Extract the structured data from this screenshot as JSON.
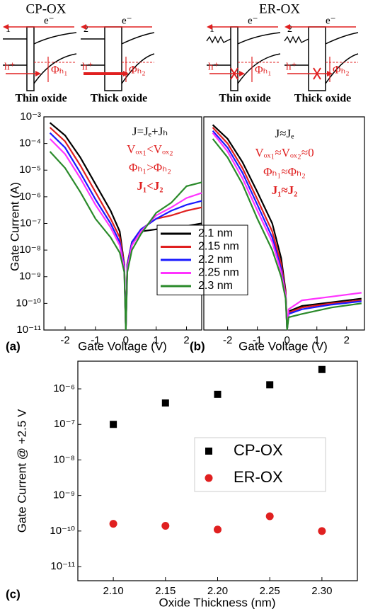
{
  "diagrams": {
    "cp_title": "CP-OX",
    "er_title": "ER-OX",
    "panels": [
      {
        "number": "1",
        "electron": "e⁻",
        "hole": "h⁺",
        "barrier": "Φₕ₁",
        "caption": "Thin oxide"
      },
      {
        "number": "2",
        "electron": "e⁻",
        "hole": "h⁺",
        "barrier": "Φₕ₂",
        "caption": "Thick oxide"
      },
      {
        "number": "1",
        "electron": "e⁻",
        "hole": "h⁺",
        "barrier": "Φₕ₁",
        "caption": "Thin oxide"
      },
      {
        "number": "2",
        "electron": "e⁻",
        "hole": "h⁺",
        "barrier": "Φₕ₂",
        "caption": "Thick oxide"
      }
    ]
  },
  "chart_data": [
    {
      "type": "line",
      "panel_label": "(a)",
      "y_label": "Gate Current (A)",
      "x_label": "Gate Voltage (V)",
      "yscale": "log",
      "xlim": [
        -2.7,
        2.5
      ],
      "ylim": [
        1e-11,
        0.001
      ],
      "xticks": [
        -2,
        -1,
        0,
        1,
        2
      ],
      "yticks": [
        {
          "value": 1e-11,
          "label": "10⁻¹¹"
        },
        {
          "value": 1e-10,
          "label": "10⁻¹⁰"
        },
        {
          "value": 1e-09,
          "label": "10⁻⁹"
        },
        {
          "value": 1e-08,
          "label": "10⁻⁸"
        },
        {
          "value": 1e-07,
          "label": "10⁻⁷"
        },
        {
          "value": 1e-06,
          "label": "10⁻⁶"
        },
        {
          "value": 1e-05,
          "label": "10⁻⁵"
        },
        {
          "value": 0.0001,
          "label": "10⁻⁴"
        },
        {
          "value": 0.001,
          "label": "10⁻³"
        }
      ],
      "annotations": [
        {
          "text": "J=Jₑ+Jₕ",
          "color": "#000000",
          "bold": false
        },
        {
          "text": "Vₒₓ₁<Vₒₓ₂",
          "color": "#e02020",
          "bold": false
        },
        {
          "text": "Φₕ₁>Φₕ₂",
          "color": "#e02020",
          "bold": false
        },
        {
          "text": "J₁<J₂",
          "color": "#e02020",
          "bold": true
        }
      ],
      "x": [
        -2.5,
        -2,
        -1.5,
        -1,
        -0.5,
        -0.2,
        -0.05,
        0,
        0.05,
        0.2,
        0.5,
        1,
        1.5,
        2,
        2.5
      ],
      "series": [
        {
          "name": "2.1 nm",
          "color": "#000000",
          "values": [
            0.0006,
            0.0002,
            3e-05,
            3e-06,
            3e-07,
            5e-08,
            3e-09,
            1e-11,
            3e-09,
            2e-08,
            5e-08,
            6e-08,
            7e-08,
            8e-08,
            1e-07
          ]
        },
        {
          "name": "2.15 nm",
          "color": "#e02020",
          "values": [
            0.0004,
            0.00012,
            1.5e-05,
            1.5e-06,
            1.5e-07,
            3e-08,
            3e-09,
            1e-11,
            3e-09,
            2e-08,
            6e-08,
            1.5e-07,
            2e-07,
            3e-07,
            4e-07
          ]
        },
        {
          "name": "2.2 nm",
          "color": "#1a1aff",
          "values": [
            0.00025,
            7e-05,
            8e-06,
            8e-07,
            1e-07,
            2e-08,
            2.5e-09,
            1e-11,
            2.5e-09,
            2e-08,
            6e-08,
            1.5e-07,
            3e-07,
            5e-07,
            7e-07
          ]
        },
        {
          "name": "2.25 nm",
          "color": "#ff33ff",
          "values": [
            0.00015,
            4e-05,
            5e-06,
            5e-07,
            7e-08,
            1.5e-08,
            2e-09,
            1e-11,
            2e-09,
            1.5e-08,
            5e-08,
            2e-07,
            4e-07,
            9e-07,
            1.4e-06
          ]
        },
        {
          "name": "2.3 nm",
          "color": "#2a8a2a",
          "values": [
            5e-05,
            1.2e-05,
            1.5e-06,
            1.5e-07,
            3e-08,
            8e-09,
            1.5e-09,
            1e-11,
            1.5e-09,
            1e-08,
            4e-08,
            2.5e-07,
            6e-07,
            2.5e-06,
            3.5e-06
          ]
        }
      ]
    },
    {
      "type": "line",
      "panel_label": "(b)",
      "x_label": "Gate Voltage (V)",
      "yscale": "log",
      "xlim": [
        -2.8,
        2.6
      ],
      "ylim": [
        1e-11,
        0.001
      ],
      "xticks": [
        -2,
        -1,
        0,
        1,
        2
      ],
      "annotations": [
        {
          "text": "J≈Jₑ",
          "color": "#000000",
          "bold": false
        },
        {
          "text": "Vₒₓ₁≈Vₒₓ₂≈0",
          "color": "#e02020",
          "bold": false
        },
        {
          "text": "Φₕ₁≈Φₕ₂",
          "color": "#e02020",
          "bold": false
        },
        {
          "text": "J₁≈J₂",
          "color": "#e02020",
          "bold": true
        }
      ],
      "x": [
        -2.5,
        -2,
        -1.5,
        -1,
        -0.5,
        -0.2,
        -0.05,
        0,
        0.05,
        0.5,
        1.5,
        2.5
      ],
      "series": [
        {
          "color": "#000000",
          "values": [
            0.0005,
            0.00015,
            2e-05,
            1.5e-06,
            1e-07,
            5e-09,
            3e-10,
            1e-11,
            5e-11,
            8e-11,
            1.1e-10,
            1.5e-10
          ]
        },
        {
          "color": "#e02020",
          "values": [
            0.0004,
            0.0001,
            1.2e-05,
            8e-07,
            5e-08,
            3e-09,
            2.5e-10,
            1e-11,
            4.5e-11,
            7e-11,
            1e-10,
            1.3e-10
          ]
        },
        {
          "color": "#1a1aff",
          "values": [
            0.0003,
            7e-05,
            8e-06,
            5e-07,
            3e-08,
            2e-09,
            2e-10,
            1e-11,
            4e-11,
            6e-11,
            9e-11,
            1.2e-10
          ]
        },
        {
          "color": "#ff33ff",
          "values": [
            0.00025,
            5e-05,
            5e-06,
            3e-07,
            2e-08,
            1.5e-09,
            2e-10,
            1e-11,
            6e-11,
            1.3e-10,
            1.8e-10,
            2.5e-10
          ]
        },
        {
          "color": "#2a8a2a",
          "values": [
            0.00015,
            3e-05,
            3e-06,
            1.5e-07,
            1e-08,
            1e-09,
            1.5e-10,
            1e-11,
            3e-11,
            4e-11,
            7e-11,
            1e-10
          ]
        }
      ]
    },
    {
      "type": "scatter",
      "panel_label": "(c)",
      "y_label": "Gate Current @ +2.5 V",
      "x_label": "Oxide Thickness (nm)",
      "yscale": "log",
      "xlim": [
        2.066,
        2.334
      ],
      "ylim": [
        4e-12,
        6e-06
      ],
      "xticks": [
        {
          "value": 2.1,
          "label": "2.10"
        },
        {
          "value": 2.15,
          "label": "2.15"
        },
        {
          "value": 2.2,
          "label": "2.20"
        },
        {
          "value": 2.25,
          "label": "2.25"
        },
        {
          "value": 2.3,
          "label": "2.30"
        }
      ],
      "yticks": [
        {
          "value": 1e-11,
          "label": "10⁻¹¹"
        },
        {
          "value": 1e-10,
          "label": "10⁻¹⁰"
        },
        {
          "value": 1e-09,
          "label": "10⁻⁹"
        },
        {
          "value": 1e-08,
          "label": "10⁻⁸"
        },
        {
          "value": 1e-07,
          "label": "10⁻⁷"
        },
        {
          "value": 1e-06,
          "label": "10⁻⁶"
        }
      ],
      "x": [
        2.1,
        2.15,
        2.2,
        2.25,
        2.3
      ],
      "series": [
        {
          "name": "CP-OX",
          "color": "#000000",
          "marker": "square",
          "values": [
            1e-07,
            4e-07,
            7e-07,
            1.3e-06,
            3.5e-06
          ]
        },
        {
          "name": "ER-OX",
          "color": "#e02020",
          "marker": "circle",
          "values": [
            1.6e-10,
            1.4e-10,
            1.1e-10,
            2.6e-10,
            1e-10
          ]
        }
      ]
    }
  ]
}
